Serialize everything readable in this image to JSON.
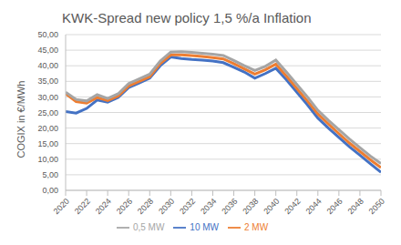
{
  "chart_data": {
    "type": "line",
    "title": "KWK-Spread new policy 1,5 %/a Inflation",
    "y_label": "COGIX in €/MWh",
    "x": [
      2020,
      2021,
      2022,
      2023,
      2024,
      2025,
      2026,
      2027,
      2028,
      2029,
      2030,
      2031,
      2032,
      2033,
      2034,
      2035,
      2036,
      2037,
      2038,
      2039,
      2040,
      2041,
      2042,
      2043,
      2044,
      2045,
      2046,
      2047,
      2048,
      2049,
      2050
    ],
    "xlim": [
      2020,
      2050
    ],
    "xticks": [
      2020,
      2022,
      2024,
      2026,
      2028,
      2030,
      2032,
      2034,
      2036,
      2038,
      2040,
      2042,
      2044,
      2046,
      2048,
      2050
    ],
    "ylim": [
      0,
      50
    ],
    "yticks": [
      {
        "value": 0,
        "label": "0,00"
      },
      {
        "value": 5,
        "label": "5,00"
      },
      {
        "value": 10,
        "label": "10,00"
      },
      {
        "value": 15,
        "label": "15,00"
      },
      {
        "value": 20,
        "label": "20,00"
      },
      {
        "value": 25,
        "label": "25,00"
      },
      {
        "value": 30,
        "label": "30,00"
      },
      {
        "value": 35,
        "label": "35,00"
      },
      {
        "value": 40,
        "label": "40,00"
      },
      {
        "value": 45,
        "label": "45,00"
      },
      {
        "value": 50,
        "label": "50,00"
      }
    ],
    "grid": true,
    "legend": "bottom",
    "series": [
      {
        "name": "10 MW",
        "color": "#4472c4",
        "values": [
          25.3,
          24.8,
          26.3,
          29,
          28.3,
          29.8,
          33,
          34.5,
          36,
          40,
          42.8,
          42.3,
          42,
          41.8,
          41.5,
          41,
          39.5,
          38,
          36,
          37.5,
          39.2,
          35.5,
          31.5,
          27.5,
          23.2,
          20,
          17,
          14,
          11.3,
          8.5,
          5.8
        ]
      },
      {
        "name": "2 MW",
        "color": "#ed7d31",
        "values": [
          31,
          28.5,
          28,
          29.8,
          28.8,
          30.3,
          33.5,
          35,
          36.5,
          40.7,
          43.5,
          43.5,
          43.3,
          43,
          42.6,
          42.2,
          40.7,
          39,
          37.3,
          38.7,
          40.5,
          36.7,
          32.7,
          28.7,
          24.5,
          21.3,
          18.2,
          15.2,
          12.5,
          9.8,
          7.3
        ]
      },
      {
        "name": "0,5 MW",
        "color": "#a5a5a5",
        "values": [
          31.5,
          29.2,
          28.7,
          30.7,
          29.5,
          31,
          34.3,
          35.8,
          37.3,
          41.5,
          44.4,
          44.5,
          44.3,
          44,
          43.7,
          43.3,
          41.7,
          40,
          38.5,
          39.8,
          41.8,
          38,
          34,
          30,
          25.7,
          22.5,
          19.5,
          16.5,
          13.7,
          11,
          8.6
        ]
      }
    ]
  }
}
